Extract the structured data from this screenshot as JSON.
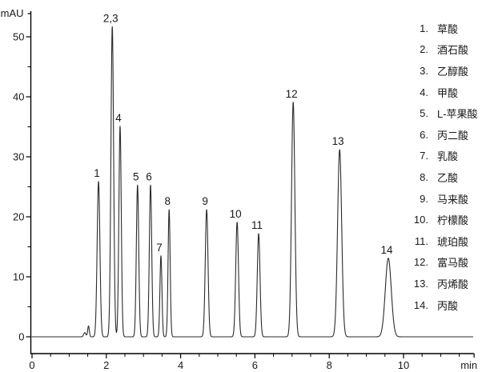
{
  "chart_data": {
    "type": "line",
    "title": "",
    "xlabel": "min",
    "ylabel": "mAU",
    "grid": false,
    "line_color": "#2b2b2b",
    "axis_color": "#000000",
    "text_color": "#1a1a1a",
    "x_axis": {
      "label": "min",
      "min": 0,
      "max": 11.9,
      "major_ticks": [
        0,
        2,
        4,
        6,
        8,
        10
      ],
      "minor_tick_step": 0.5
    },
    "y_axis": {
      "label": "mAU",
      "min": 0,
      "max": 54,
      "major_ticks": [
        0,
        10,
        20,
        30,
        40,
        50
      ],
      "minor_tick_step": 5
    },
    "peaks": [
      {
        "label": "1",
        "name": "草酸",
        "rt_min": 1.79,
        "height_mau": 25.9,
        "sigma": 0.037
      },
      {
        "label": "2,3",
        "name": "酒石酸+乙醇酸",
        "rt_min": 2.16,
        "height_mau": 51.7,
        "sigma": 0.036
      },
      {
        "label": "4",
        "name": "甲酸",
        "rt_min": 2.37,
        "height_mau": 35.1,
        "sigma": 0.032
      },
      {
        "label": "5",
        "name": "L-苹果酸",
        "rt_min": 2.84,
        "height_mau": 25.3,
        "sigma": 0.032
      },
      {
        "label": "6",
        "name": "丙二酸",
        "rt_min": 3.19,
        "height_mau": 25.3,
        "sigma": 0.032
      },
      {
        "label": "7",
        "name": "乳酸",
        "rt_min": 3.47,
        "height_mau": 13.5,
        "sigma": 0.027
      },
      {
        "label": "8",
        "name": "乙酸",
        "rt_min": 3.69,
        "height_mau": 21.2,
        "sigma": 0.028
      },
      {
        "label": "9",
        "name": "马来酸",
        "rt_min": 4.7,
        "height_mau": 21.2,
        "sigma": 0.037
      },
      {
        "label": "10",
        "name": "柠檬酸",
        "rt_min": 5.52,
        "height_mau": 19.1,
        "sigma": 0.037
      },
      {
        "label": "11",
        "name": "琥珀酸",
        "rt_min": 6.1,
        "height_mau": 17.2,
        "sigma": 0.037
      },
      {
        "label": "12",
        "name": "富马酸",
        "rt_min": 7.03,
        "height_mau": 39.1,
        "sigma": 0.045
      },
      {
        "label": "13",
        "name": "丙烯酸",
        "rt_min": 8.28,
        "height_mau": 31.2,
        "sigma": 0.055
      },
      {
        "label": "14",
        "name": "丙酸",
        "rt_min": 9.59,
        "height_mau": 13.1,
        "sigma": 0.08
      }
    ],
    "baseline_blips": [
      {
        "rt_min": 1.42,
        "height_mau": 0.7,
        "sigma": 0.03
      },
      {
        "rt_min": 1.52,
        "height_mau": 1.8,
        "sigma": 0.022
      }
    ]
  },
  "legend": {
    "items": [
      {
        "number": "1.",
        "label": "草酸"
      },
      {
        "number": "2.",
        "label": "酒石酸"
      },
      {
        "number": "3.",
        "label": "乙醇酸"
      },
      {
        "number": "4.",
        "label": "甲酸"
      },
      {
        "number": "5.",
        "label": "L-苹果酸"
      },
      {
        "number": "6.",
        "label": "丙二酸"
      },
      {
        "number": "7.",
        "label": "乳酸"
      },
      {
        "number": "8.",
        "label": "乙酸"
      },
      {
        "number": "9.",
        "label": "马来酸"
      },
      {
        "number": "10.",
        "label": "柠檬酸"
      },
      {
        "number": "11.",
        "label": "琥珀酸"
      },
      {
        "number": "12.",
        "label": "富马酸"
      },
      {
        "number": "13.",
        "label": "丙烯酸"
      },
      {
        "number": "14.",
        "label": "丙酸"
      }
    ]
  }
}
